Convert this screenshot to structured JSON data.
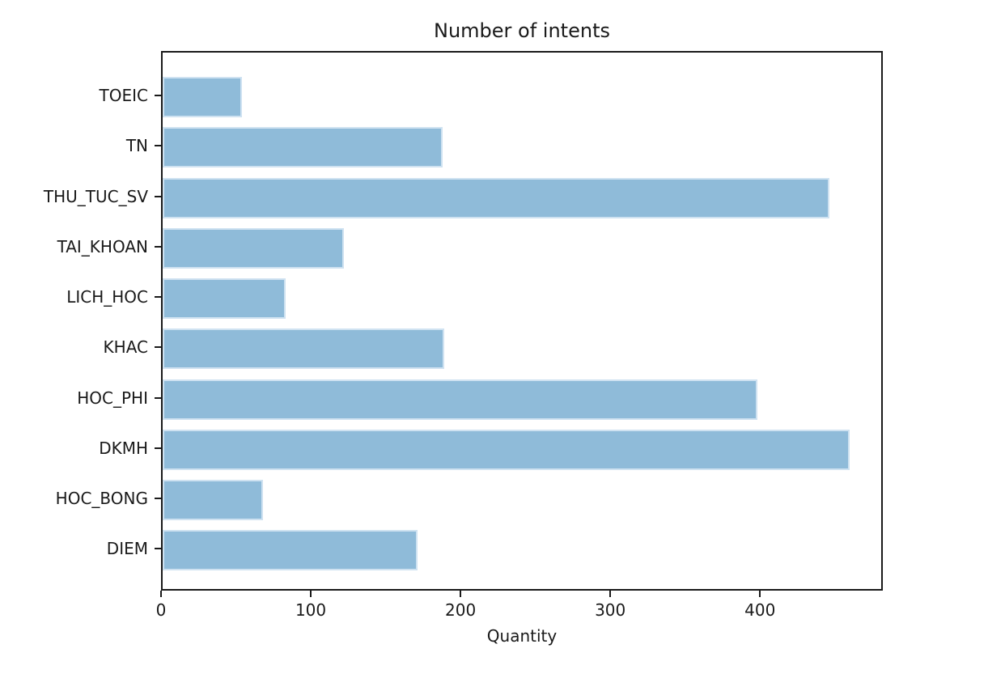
{
  "chart_data": {
    "type": "bar",
    "orientation": "horizontal",
    "title": "Number of intents",
    "xlabel": "Quantity",
    "ylabel": "",
    "categories": [
      "TOEIC",
      "TN",
      "THU_TUC_SV",
      "TAI_KHOAN",
      "LICH_HOC",
      "KHAC",
      "HOC_PHI",
      "DKMH",
      "HOC_BONG",
      "DIEM"
    ],
    "values": [
      53,
      187,
      445,
      121,
      82,
      188,
      397,
      459,
      67,
      170
    ],
    "xticks": [
      0,
      100,
      200,
      300,
      400
    ],
    "xlim": [
      0,
      482
    ],
    "grid": false,
    "legend": null,
    "bar_color": "#8FBBD9",
    "bar_edge_color": "#cfe2f1",
    "axis_color": "#1a1a1a",
    "text_color": "#1a1a1a",
    "background_color": "#ffffff"
  }
}
